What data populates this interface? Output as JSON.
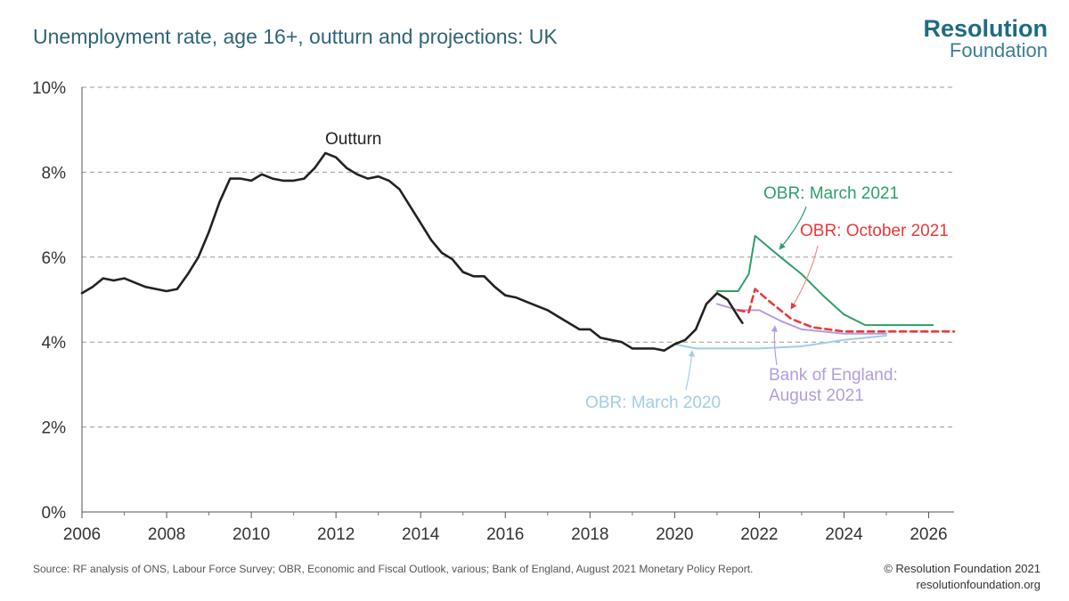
{
  "header": {
    "title": "Unemployment rate, age 16+, outturn and projections: UK",
    "logo_main": "Resolution",
    "logo_sub": "Foundation"
  },
  "footer": {
    "source": "Source: RF analysis of ONS, Labour Force Survey; OBR, Economic and Fiscal Outlook, various; Bank of England, August 2021 Monetary Policy Report.",
    "copyright": "© Resolution Foundation 2021",
    "website": "resolutionfoundation.org"
  },
  "chart_data": {
    "type": "line",
    "title": "Unemployment rate, age 16+, outturn and projections: UK",
    "xlabel": "",
    "ylabel": "",
    "xlim": [
      2006,
      2026.6
    ],
    "ylim": [
      0,
      10
    ],
    "x_ticks": [
      2006,
      2008,
      2010,
      2012,
      2014,
      2016,
      2018,
      2020,
      2022,
      2024,
      2026
    ],
    "y_ticks": [
      0,
      2,
      4,
      6,
      8,
      10
    ],
    "y_tick_labels": [
      "0%",
      "2%",
      "4%",
      "6%",
      "8%",
      "10%"
    ],
    "grid": "horizontal dashed",
    "series": [
      {
        "name": "Outturn",
        "color": "#222222",
        "style": "solid",
        "points": [
          [
            2006.0,
            5.15
          ],
          [
            2006.25,
            5.3
          ],
          [
            2006.5,
            5.5
          ],
          [
            2006.75,
            5.45
          ],
          [
            2007.0,
            5.5
          ],
          [
            2007.25,
            5.4
          ],
          [
            2007.5,
            5.3
          ],
          [
            2007.75,
            5.25
          ],
          [
            2008.0,
            5.2
          ],
          [
            2008.25,
            5.25
          ],
          [
            2008.5,
            5.6
          ],
          [
            2008.75,
            6.0
          ],
          [
            2009.0,
            6.6
          ],
          [
            2009.25,
            7.3
          ],
          [
            2009.5,
            7.85
          ],
          [
            2009.75,
            7.85
          ],
          [
            2010.0,
            7.8
          ],
          [
            2010.25,
            7.95
          ],
          [
            2010.5,
            7.85
          ],
          [
            2010.75,
            7.8
          ],
          [
            2011.0,
            7.8
          ],
          [
            2011.25,
            7.85
          ],
          [
            2011.5,
            8.1
          ],
          [
            2011.75,
            8.45
          ],
          [
            2012.0,
            8.35
          ],
          [
            2012.25,
            8.1
          ],
          [
            2012.5,
            7.95
          ],
          [
            2012.75,
            7.85
          ],
          [
            2013.0,
            7.9
          ],
          [
            2013.25,
            7.8
          ],
          [
            2013.5,
            7.6
          ],
          [
            2013.75,
            7.2
          ],
          [
            2014.0,
            6.8
          ],
          [
            2014.25,
            6.4
          ],
          [
            2014.5,
            6.1
          ],
          [
            2014.75,
            5.95
          ],
          [
            2015.0,
            5.65
          ],
          [
            2015.25,
            5.55
          ],
          [
            2015.5,
            5.55
          ],
          [
            2015.75,
            5.3
          ],
          [
            2016.0,
            5.1
          ],
          [
            2016.25,
            5.05
          ],
          [
            2016.5,
            4.95
          ],
          [
            2016.75,
            4.85
          ],
          [
            2017.0,
            4.75
          ],
          [
            2017.25,
            4.6
          ],
          [
            2017.5,
            4.45
          ],
          [
            2017.75,
            4.3
          ],
          [
            2018.0,
            4.3
          ],
          [
            2018.25,
            4.1
          ],
          [
            2018.5,
            4.05
          ],
          [
            2018.75,
            4.0
          ],
          [
            2019.0,
            3.85
          ],
          [
            2019.25,
            3.85
          ],
          [
            2019.5,
            3.85
          ],
          [
            2019.75,
            3.8
          ],
          [
            2020.0,
            3.95
          ],
          [
            2020.25,
            4.05
          ],
          [
            2020.5,
            4.3
          ],
          [
            2020.75,
            4.9
          ],
          [
            2021.0,
            5.15
          ],
          [
            2021.25,
            5.0
          ],
          [
            2021.5,
            4.6
          ],
          [
            2021.6,
            4.45
          ]
        ]
      },
      {
        "name": "OBR: March 2021",
        "color": "#2e9e6b",
        "style": "solid",
        "points": [
          [
            2021.0,
            5.2
          ],
          [
            2021.5,
            5.2
          ],
          [
            2021.75,
            5.6
          ],
          [
            2021.9,
            6.5
          ],
          [
            2022.5,
            6.0
          ],
          [
            2023.0,
            5.6
          ],
          [
            2023.5,
            5.1
          ],
          [
            2024.0,
            4.65
          ],
          [
            2024.5,
            4.4
          ],
          [
            2025.0,
            4.4
          ],
          [
            2026.1,
            4.4
          ]
        ]
      },
      {
        "name": "OBR: October 2021",
        "color": "#e83a3a",
        "style": "dashed",
        "points": [
          [
            2021.5,
            4.75
          ],
          [
            2021.75,
            4.7
          ],
          [
            2021.9,
            5.25
          ],
          [
            2022.25,
            4.95
          ],
          [
            2022.75,
            4.55
          ],
          [
            2023.25,
            4.35
          ],
          [
            2024.0,
            4.25
          ],
          [
            2025.0,
            4.25
          ],
          [
            2026.6,
            4.25
          ]
        ]
      },
      {
        "name": "Bank of England: August 2021",
        "color": "#b39ddb",
        "style": "solid",
        "points": [
          [
            2021.0,
            4.9
          ],
          [
            2021.5,
            4.75
          ],
          [
            2022.0,
            4.75
          ],
          [
            2022.5,
            4.5
          ],
          [
            2023.0,
            4.3
          ],
          [
            2024.0,
            4.2
          ],
          [
            2025.0,
            4.2
          ]
        ]
      },
      {
        "name": "OBR: March 2020",
        "color": "#9fcfe6",
        "style": "solid",
        "points": [
          [
            2020.0,
            3.95
          ],
          [
            2020.5,
            3.85
          ],
          [
            2021.0,
            3.85
          ],
          [
            2021.5,
            3.85
          ],
          [
            2022.0,
            3.85
          ],
          [
            2023.0,
            3.9
          ],
          [
            2024.0,
            4.05
          ],
          [
            2025.0,
            4.15
          ]
        ]
      }
    ],
    "annotations": [
      {
        "text": "Outturn",
        "color": "#222222"
      },
      {
        "text": "OBR: March 2021",
        "color": "#2e9e6b"
      },
      {
        "text": "OBR: October 2021",
        "color": "#e83a3a"
      },
      {
        "text": "Bank of England:",
        "color": "#b39ddb"
      },
      {
        "text": "August 2021",
        "color": "#b39ddb"
      },
      {
        "text": "OBR: March 2020",
        "color": "#9fcfe6"
      }
    ]
  }
}
